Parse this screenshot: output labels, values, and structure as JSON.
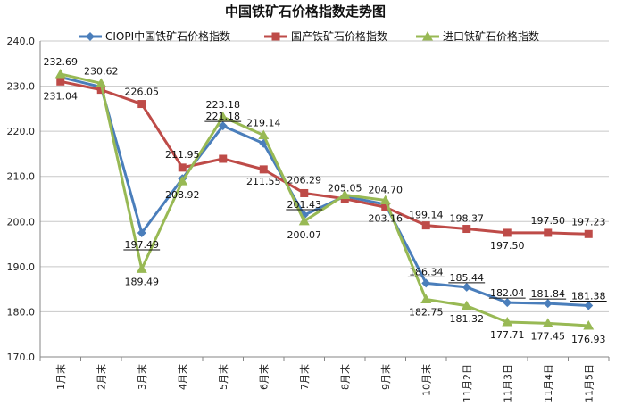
{
  "chart_data": {
    "type": "line",
    "title": "中国铁矿石价格指数走势图",
    "categories": [
      "1月末",
      "2月末",
      "3月末",
      "4月末",
      "5月末",
      "6月末",
      "7月末",
      "8月末",
      "9月末",
      "10月末",
      "11月2日",
      "11月3日",
      "11月4日",
      "11月5日"
    ],
    "ylim": [
      170,
      240
    ],
    "yticks": [
      "170.0",
      "180.0",
      "190.0",
      "200.0",
      "210.0",
      "220.0",
      "230.0",
      "240.0"
    ],
    "legend_position": "top",
    "grid": true,
    "series": [
      {
        "name": "CIOPI中国铁矿石价格指数",
        "color": "#4a7ebb",
        "marker": "diamond",
        "values": [
          232.0,
          229.8,
          197.49,
          209.5,
          221.18,
          217.3,
          201.43,
          205.6,
          203.8,
          186.34,
          185.44,
          182.04,
          181.84,
          181.38
        ],
        "labels": [
          null,
          null,
          "197.49",
          null,
          "221.18",
          null,
          "201.43",
          null,
          null,
          "186.34",
          "185.44",
          "182.04",
          "181.84",
          "181.38"
        ]
      },
      {
        "name": "国产铁矿石价格指数",
        "color": "#be4b48",
        "marker": "square",
        "values": [
          231.04,
          229.2,
          226.05,
          211.95,
          213.9,
          211.55,
          206.29,
          205.05,
          203.16,
          199.14,
          198.37,
          197.5,
          197.5,
          197.23
        ],
        "labels": [
          "231.04",
          null,
          "226.05",
          "211.95",
          null,
          "211.55",
          "206.29",
          "205.05",
          "203.16",
          "199.14",
          "198.37",
          "197.50",
          "197.50",
          "197.23"
        ]
      },
      {
        "name": "进口铁矿石价格指数",
        "color": "#98b954",
        "marker": "triangle",
        "values": [
          232.69,
          230.62,
          189.49,
          208.92,
          223.18,
          219.14,
          200.07,
          205.9,
          204.7,
          182.75,
          181.32,
          177.71,
          177.45,
          176.93
        ],
        "labels": [
          "232.69",
          "230.62",
          "189.49",
          "208.92",
          "223.18",
          "219.14",
          "200.07",
          null,
          "204.70",
          "182.75",
          "181.32",
          "177.71",
          "177.45",
          "176.93"
        ]
      }
    ]
  }
}
